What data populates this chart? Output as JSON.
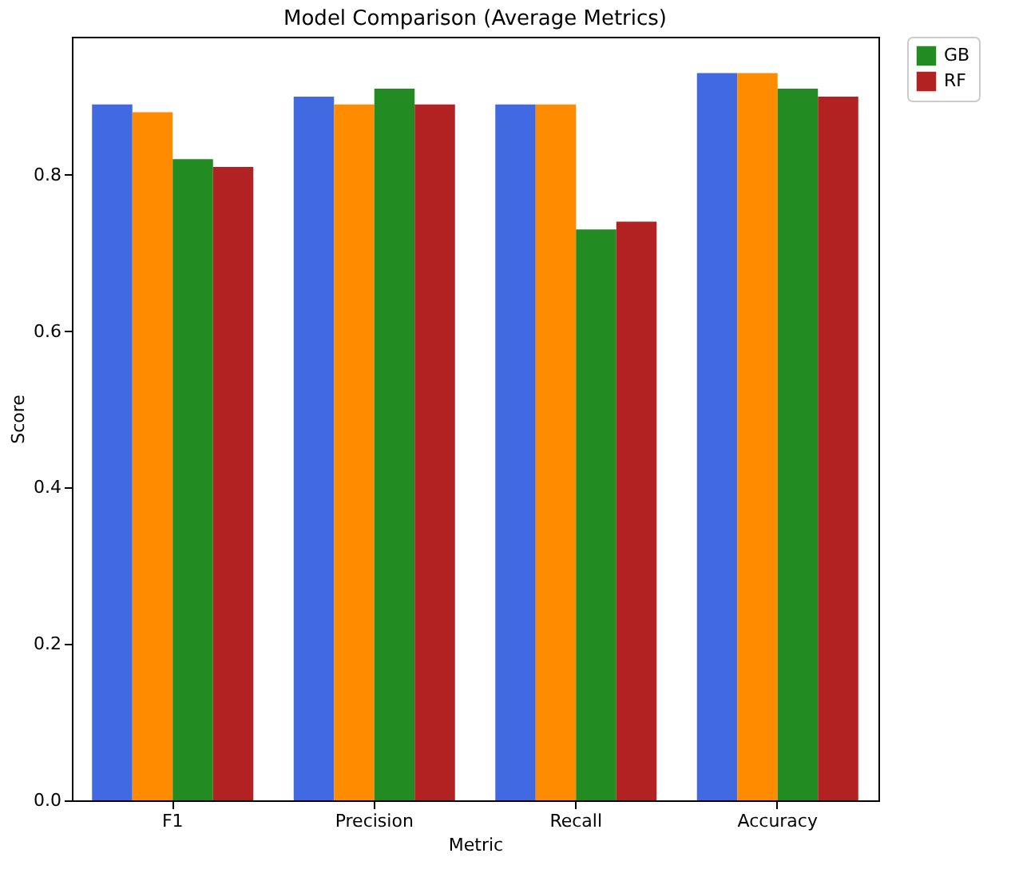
{
  "chart_data": {
    "type": "bar",
    "title": "Model Comparison (Average Metrics)",
    "xlabel": "Metric",
    "ylabel": "Score",
    "categories": [
      "F1",
      "Precision",
      "Recall",
      "Accuracy"
    ],
    "series": [
      {
        "color": "#4169e1",
        "values": [
          0.89,
          0.9,
          0.89,
          0.93
        ]
      },
      {
        "color": "#ff8c00",
        "values": [
          0.88,
          0.89,
          0.89,
          0.93
        ]
      },
      {
        "name": "GB",
        "color": "#228b22",
        "values": [
          0.82,
          0.91,
          0.73,
          0.91
        ]
      },
      {
        "name": "RF",
        "color": "#b22222",
        "values": [
          0.81,
          0.89,
          0.74,
          0.9
        ]
      }
    ],
    "ylim": [
      0,
      0.9765
    ],
    "yticks": [
      {
        "value": 0,
        "label": "0.0"
      },
      0.2,
      0.4,
      0.6,
      0.8
    ],
    "grid": false,
    "legend": "top right"
  }
}
